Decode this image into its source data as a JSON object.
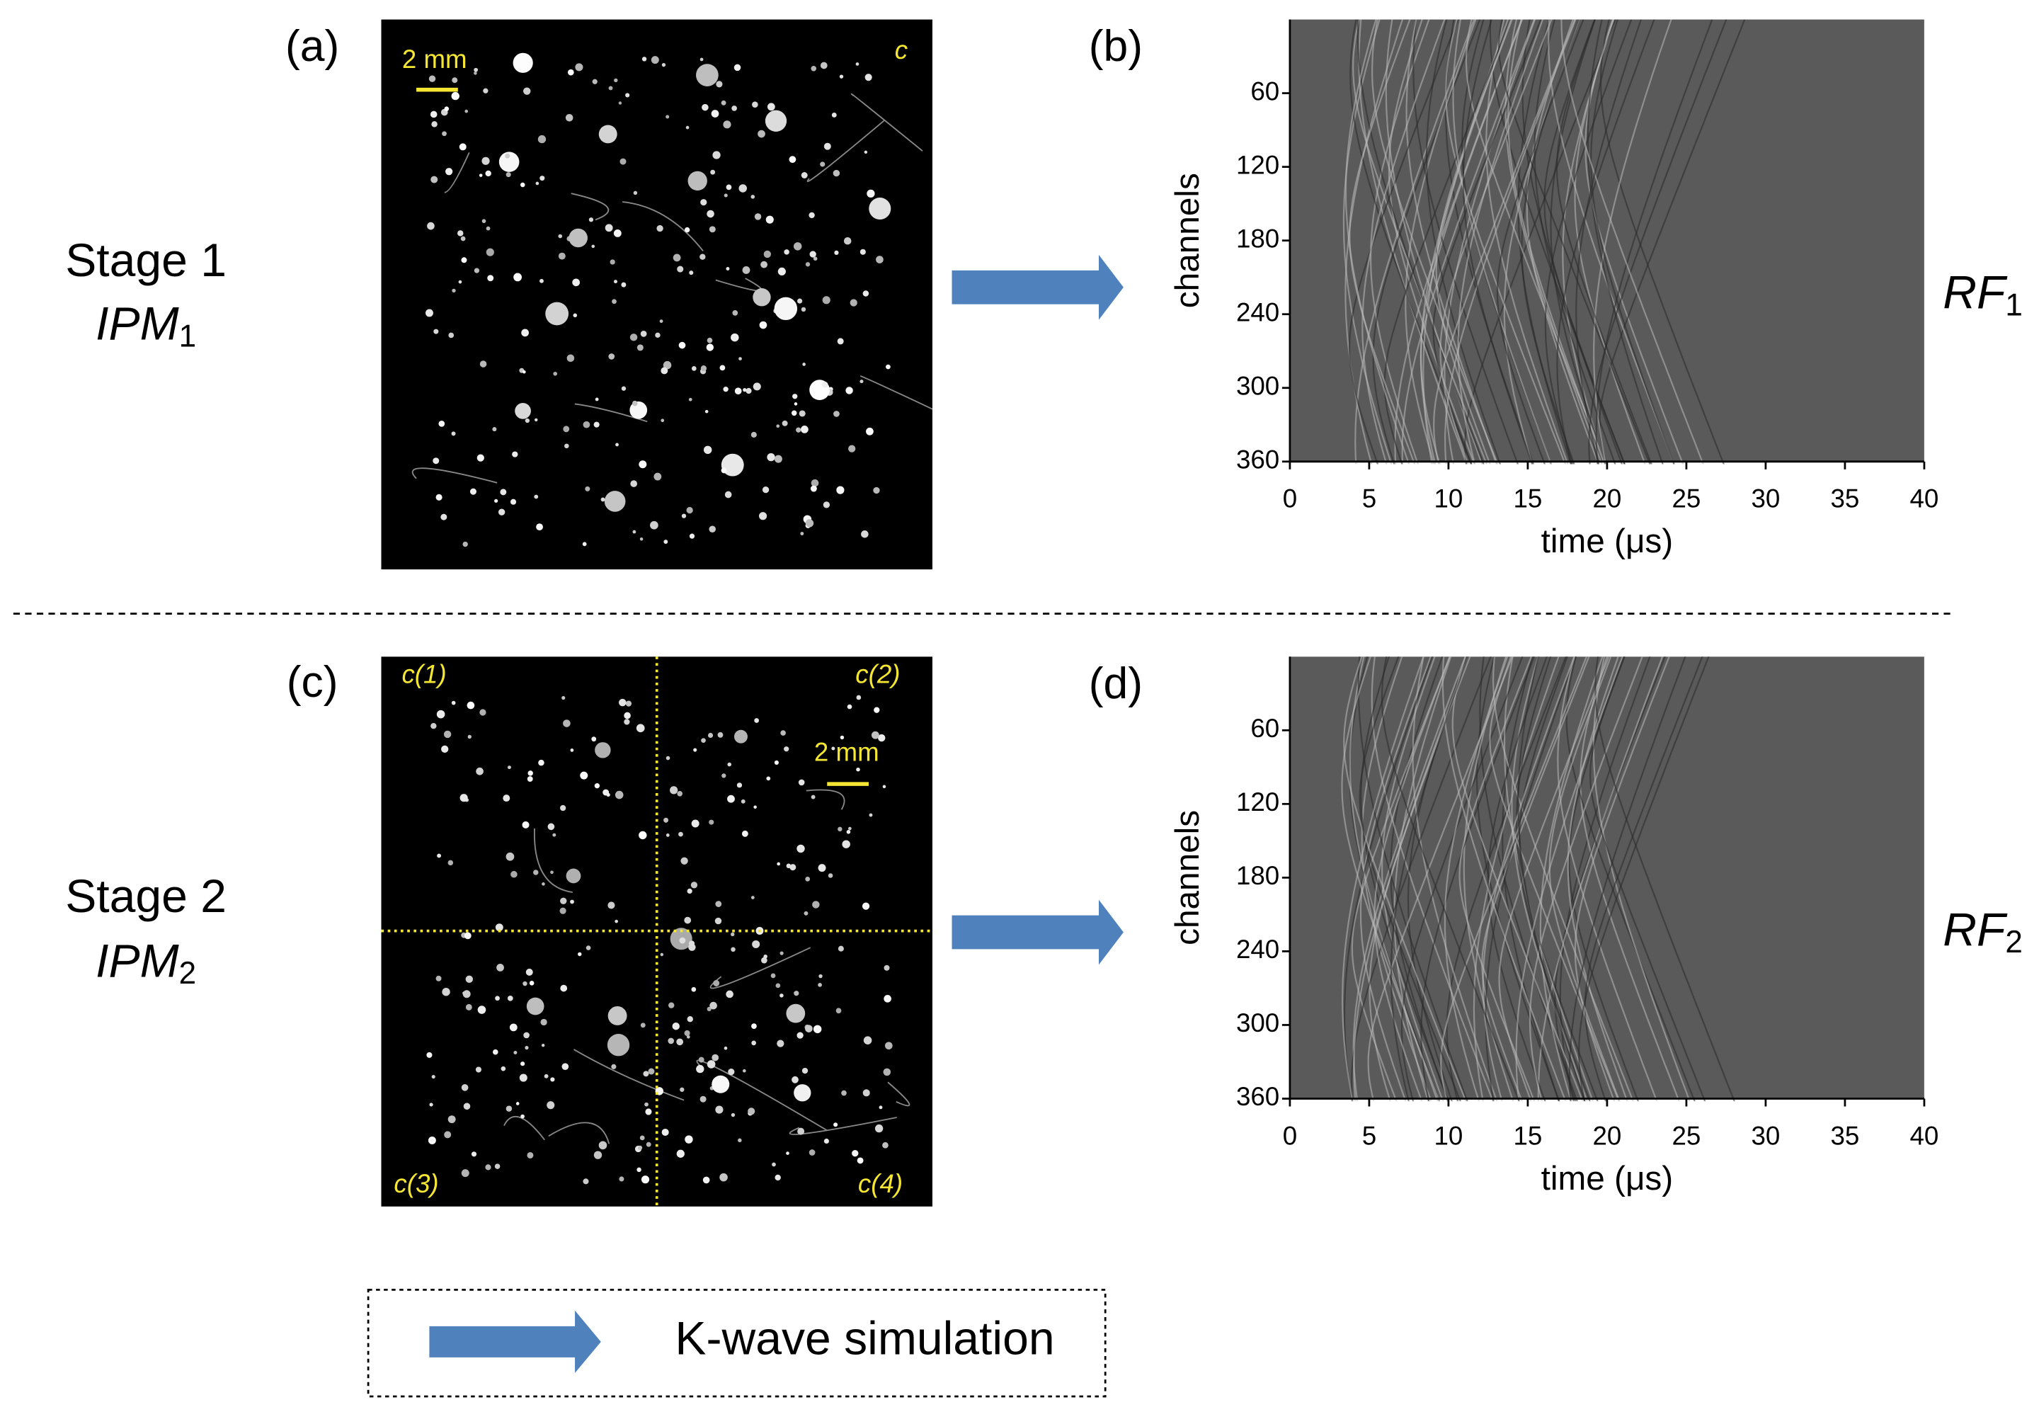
{
  "images": [
    {
      "label": "(a)",
      "scale_bar": "2 mm",
      "corner": "c"
    },
    {
      "label": "(c)",
      "scale_bar": "2 mm",
      "quadrants": [
        "c(1)",
        "c(2)",
        "c(3)",
        "c(4)"
      ]
    }
  ],
  "stages": [
    {
      "name": "Stage 1",
      "model": "IPM",
      "model_sub": "1",
      "output": "RF",
      "output_sub": "1"
    },
    {
      "name": "Stage 2",
      "model": "IPM",
      "model_sub": "2",
      "output": "RF",
      "output_sub": "2"
    }
  ],
  "chart_data": [
    {
      "type": "heatmap",
      "label": "(b)",
      "x_label": "time (μs)",
      "y_label": "channels",
      "xlim": [
        0,
        40
      ],
      "ylim": [
        0,
        360
      ],
      "y_reversed": true,
      "xticks": [
        0,
        5,
        10,
        15,
        20,
        25,
        30,
        35,
        40
      ],
      "yticks": [
        60,
        120,
        180,
        240,
        300,
        360
      ]
    },
    {
      "type": "heatmap",
      "label": "(d)",
      "x_label": "time (μs)",
      "y_label": "channels",
      "xlim": [
        0,
        40
      ],
      "ylim": [
        0,
        360
      ],
      "y_reversed": true,
      "xticks": [
        0,
        5,
        10,
        15,
        20,
        25,
        30,
        35,
        40
      ],
      "yticks": [
        60,
        120,
        180,
        240,
        300,
        360
      ]
    }
  ],
  "legend": "K-wave simulation"
}
